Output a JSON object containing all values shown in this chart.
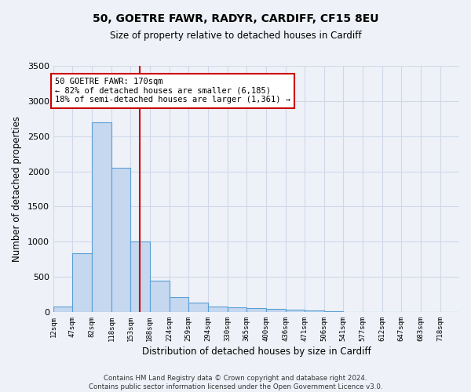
{
  "title": "50, GOETRE FAWR, RADYR, CARDIFF, CF15 8EU",
  "subtitle": "Size of property relative to detached houses in Cardiff",
  "xlabel": "Distribution of detached houses by size in Cardiff",
  "ylabel": "Number of detached properties",
  "footer_line1": "Contains HM Land Registry data © Crown copyright and database right 2024.",
  "footer_line2": "Contains public sector information licensed under the Open Government Licence v3.0.",
  "bar_edges": [
    12,
    47,
    82,
    118,
    153,
    188,
    224,
    259,
    294,
    330,
    365,
    400,
    436,
    471,
    506,
    541,
    577,
    612,
    647,
    683,
    718
  ],
  "bar_values": [
    75,
    830,
    2700,
    2050,
    1000,
    450,
    210,
    135,
    80,
    65,
    55,
    45,
    35,
    20,
    5,
    3,
    2,
    1,
    1,
    0,
    0
  ],
  "bar_color": "#c5d8f0",
  "bar_edge_color": "#5a9fd4",
  "vline_x": 170,
  "vline_color": "#cc0000",
  "ylim": [
    0,
    3500
  ],
  "annotation_text": "50 GOETRE FAWR: 170sqm\n← 82% of detached houses are smaller (6,185)\n18% of semi-detached houses are larger (1,361) →",
  "annotation_box_color": "#ffffff",
  "annotation_box_edgecolor": "#cc0000",
  "grid_color": "#d0d8e8",
  "bg_color": "#eef2f8",
  "yticks": [
    0,
    500,
    1000,
    1500,
    2000,
    2500,
    3000,
    3500
  ]
}
